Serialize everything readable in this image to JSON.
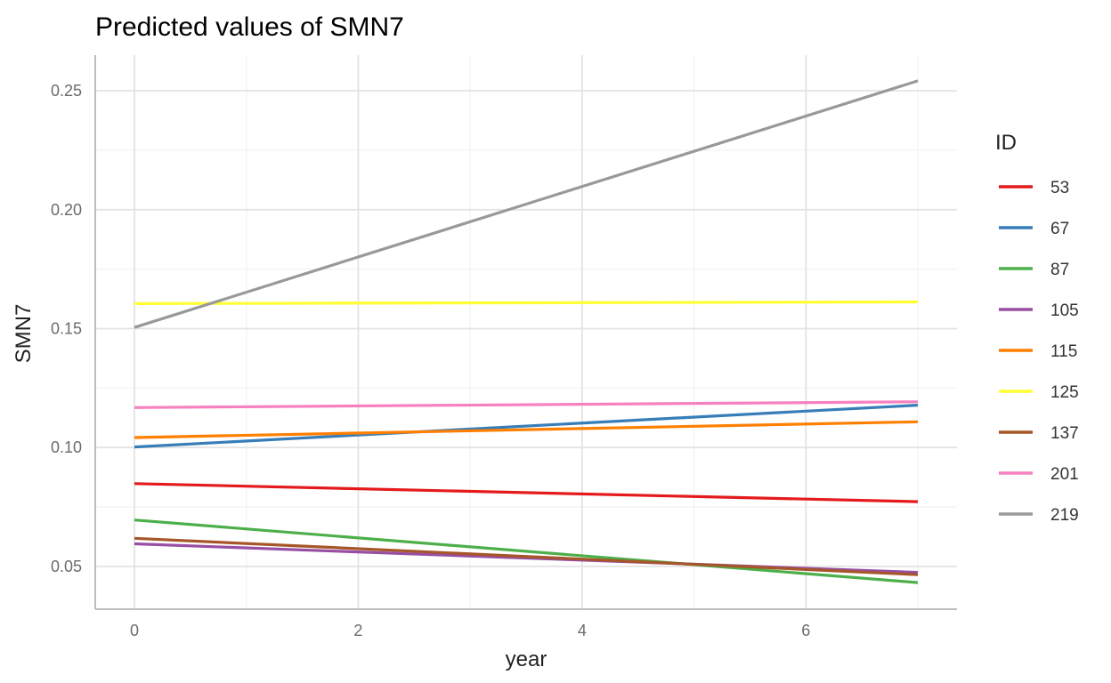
{
  "chart_data": {
    "type": "line",
    "title": "Predicted values of SMN7",
    "xlabel": "year",
    "ylabel": "SMN7",
    "xlim": [
      -0.35,
      7.35
    ],
    "ylim": [
      0.032,
      0.265
    ],
    "x_ticks": [
      0,
      2,
      4,
      6
    ],
    "x_tick_labels": [
      "0",
      "2",
      "4",
      "6"
    ],
    "x_minor_ticks": [
      1,
      3,
      5,
      7
    ],
    "y_ticks": [
      0.05,
      0.1,
      0.15,
      0.2,
      0.25
    ],
    "y_tick_labels": [
      "0.05",
      "0.10",
      "0.15",
      "0.20",
      "0.25"
    ],
    "y_minor_ticks": [
      0.075,
      0.125,
      0.175,
      0.225
    ],
    "grid": true,
    "legend_title": "ID",
    "legend_position": "right",
    "series": [
      {
        "name": "53",
        "color": "#e41a1c",
        "x": [
          0,
          7
        ],
        "y": [
          0.0848,
          0.0772
        ]
      },
      {
        "name": "67",
        "color": "#377eb8",
        "x": [
          0,
          7
        ],
        "y": [
          0.1002,
          0.1178
        ]
      },
      {
        "name": "87",
        "color": "#4daf4a",
        "x": [
          0,
          7
        ],
        "y": [
          0.0695,
          0.0432
        ]
      },
      {
        "name": "105",
        "color": "#984ea3",
        "x": [
          0,
          7
        ],
        "y": [
          0.0595,
          0.0475
        ]
      },
      {
        "name": "115",
        "color": "#ff7f00",
        "x": [
          0,
          7
        ],
        "y": [
          0.1042,
          0.1108
        ]
      },
      {
        "name": "125",
        "color": "#ffff33",
        "x": [
          0,
          7
        ],
        "y": [
          0.1605,
          0.1612
        ]
      },
      {
        "name": "137",
        "color": "#a65628",
        "x": [
          0,
          7
        ],
        "y": [
          0.0618,
          0.0465
        ]
      },
      {
        "name": "201",
        "color": "#f781bf",
        "x": [
          0,
          7
        ],
        "y": [
          0.1168,
          0.1192
        ]
      },
      {
        "name": "219",
        "color": "#999999",
        "x": [
          0,
          7
        ],
        "y": [
          0.1505,
          0.2542
        ]
      }
    ]
  }
}
